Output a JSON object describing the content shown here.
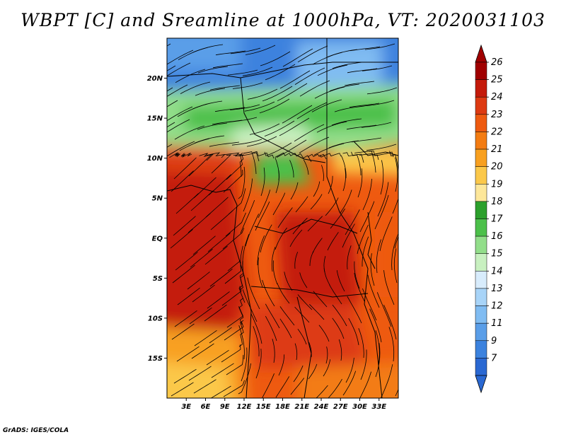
{
  "title": "WBPT [C] and Sreamline at 1000hPa, VT: 2020031103",
  "credit": "GrADS: IGES/COLA",
  "map": {
    "lon_range": [
      0,
      36
    ],
    "lat_range": [
      -20,
      25
    ],
    "lat_ticks": [
      {
        "value": 20,
        "label": "20N"
      },
      {
        "value": 15,
        "label": "15N"
      },
      {
        "value": 10,
        "label": "10N"
      },
      {
        "value": 5,
        "label": "5N"
      },
      {
        "value": 0,
        "label": "EQ"
      },
      {
        "value": -5,
        "label": "5S"
      },
      {
        "value": -10,
        "label": "10S"
      },
      {
        "value": -15,
        "label": "15S"
      }
    ],
    "lon_ticks": [
      {
        "value": 3,
        "label": "3E"
      },
      {
        "value": 6,
        "label": "6E"
      },
      {
        "value": 9,
        "label": "9E"
      },
      {
        "value": 12,
        "label": "12E"
      },
      {
        "value": 15,
        "label": "15E"
      },
      {
        "value": 18,
        "label": "18E"
      },
      {
        "value": 21,
        "label": "21E"
      },
      {
        "value": 24,
        "label": "24E"
      },
      {
        "value": 27,
        "label": "27E"
      },
      {
        "value": 30,
        "label": "30E"
      },
      {
        "value": 33,
        "label": "33E"
      }
    ]
  },
  "colorbar": {
    "labels": [
      "26",
      "25",
      "24",
      "23",
      "22",
      "21",
      "20",
      "19",
      "18",
      "17",
      "16",
      "15",
      "14",
      "13",
      "12",
      "11",
      "9",
      "7"
    ],
    "colors": [
      "#a00000",
      "#c41a0a",
      "#dd3a12",
      "#ee5a10",
      "#f37c12",
      "#f8a020",
      "#fbc84a",
      "#fde79a",
      "#2ca02c",
      "#4cc04a",
      "#92de8a",
      "#c8f0c0",
      "#d8ecfc",
      "#a8d4f8",
      "#80bcf2",
      "#5a9ee8",
      "#3c82de",
      "#2a68d2"
    ],
    "top_arrow_color": "#a00000",
    "bottom_arrow_color": "#2a68d2"
  }
}
